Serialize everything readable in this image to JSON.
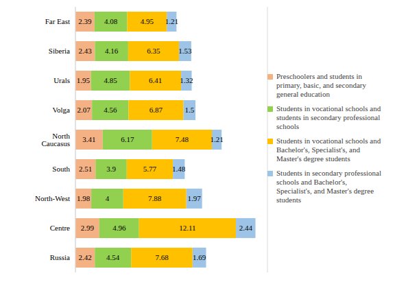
{
  "chart_data": {
    "type": "bar",
    "orientation": "horizontal",
    "stacked": true,
    "data_labels": true,
    "grid": true,
    "tick_labels": "y",
    "legend": "right",
    "categories": [
      "Far East",
      "Siberia",
      "Urals",
      "Volga",
      "North Caucasus",
      "South",
      "North-West",
      "Centre",
      "Russia"
    ],
    "xlim": [
      0,
      24
    ],
    "xticks": [
      0,
      4,
      8,
      12,
      16,
      20,
      24
    ],
    "series": [
      {
        "name": "Preschoolers and students in primary, basic, and secondary general education",
        "color": "#f4b183",
        "values": [
          2.39,
          2.43,
          1.95,
          2.07,
          3.41,
          2.51,
          1.98,
          2.99,
          2.42
        ]
      },
      {
        "name": "Students in vocational schools and students in secondary professional schools",
        "color": "#92d050",
        "values": [
          4.08,
          4.16,
          4.85,
          4.56,
          6.17,
          3.9,
          4,
          4.96,
          4.54
        ]
      },
      {
        "name": "Students in vocational schools and Bachelor's, Specialist's, and Master's degree students",
        "color": "#ffc000",
        "values": [
          4.95,
          6.35,
          6.41,
          6.87,
          7.48,
          5.77,
          7.88,
          12.11,
          7.68
        ]
      },
      {
        "name": "Students in secondary professional schools and Bachelor's, Specialist's, and Master's degree students",
        "color": "#9dc3e6",
        "values": [
          1.21,
          1.53,
          1.32,
          1.5,
          1.21,
          1.48,
          1.97,
          2.44,
          1.69
        ]
      }
    ]
  }
}
